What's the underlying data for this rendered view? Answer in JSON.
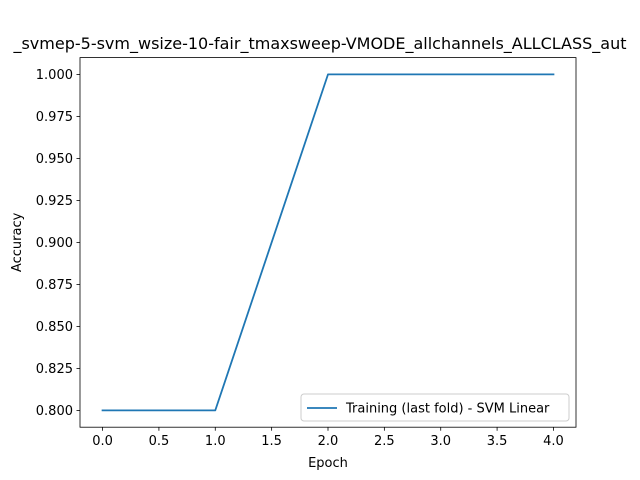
{
  "chart_data": {
    "type": "line",
    "title": "_svmep-5-svm_wsize-10-fair_tmaxsweep-VMODE_allchannels_ALLCLASS_aut",
    "xlabel": "Epoch",
    "ylabel": "Accuracy",
    "xlim": [
      -0.2,
      4.2
    ],
    "ylim": [
      0.79,
      1.01
    ],
    "xticks": [
      0.0,
      0.5,
      1.0,
      1.5,
      2.0,
      2.5,
      3.0,
      3.5,
      4.0
    ],
    "xtick_labels": [
      "0.0",
      "0.5",
      "1.0",
      "1.5",
      "2.0",
      "2.5",
      "3.0",
      "3.5",
      "4.0"
    ],
    "yticks": [
      0.8,
      0.825,
      0.85,
      0.875,
      0.9,
      0.925,
      0.95,
      0.975,
      1.0
    ],
    "ytick_labels": [
      "0.800",
      "0.825",
      "0.850",
      "0.875",
      "0.900",
      "0.925",
      "0.950",
      "0.975",
      "1.000"
    ],
    "grid": false,
    "legend_position": "lower-right",
    "series": [
      {
        "name": "Training (last fold) - SVM Linear",
        "color": "#1f77b4",
        "x": [
          0,
          1,
          2,
          3,
          4
        ],
        "y": [
          0.8,
          0.8,
          1.0,
          1.0,
          1.0
        ]
      }
    ]
  }
}
